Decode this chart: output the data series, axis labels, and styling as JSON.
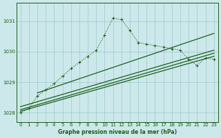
{
  "bg_color": "#cce8ea",
  "line_color": "#1a5c1a",
  "grid_color": "#9cc9cc",
  "title": "Graphe pression niveau de la mer (hPa)",
  "xlim": [
    -0.5,
    23.5
  ],
  "ylim": [
    1027.7,
    1031.6
  ],
  "yticks": [
    1028,
    1029,
    1030,
    1031
  ],
  "xticks": [
    0,
    1,
    2,
    3,
    4,
    5,
    6,
    7,
    8,
    9,
    10,
    11,
    12,
    13,
    14,
    15,
    16,
    17,
    18,
    19,
    20,
    21,
    22,
    23
  ],
  "main_curve": {
    "x": [
      0,
      1,
      2,
      3,
      4,
      5,
      6,
      7,
      8,
      9,
      10,
      11,
      12,
      13,
      14,
      15,
      16,
      17,
      18,
      19,
      20,
      21,
      22,
      23
    ],
    "y": [
      1028.0,
      1028.15,
      1028.55,
      1028.75,
      1028.95,
      1029.2,
      1029.45,
      1029.65,
      1029.85,
      1030.05,
      1030.55,
      1031.1,
      1031.05,
      1030.7,
      1030.3,
      1030.25,
      1030.2,
      1030.15,
      1030.1,
      1030.05,
      1029.75,
      1029.55,
      1029.8,
      1029.75
    ]
  },
  "line1": {
    "x": [
      0,
      23
    ],
    "y": [
      1028.05,
      1029.85
    ]
  },
  "line2": {
    "x": [
      0,
      23
    ],
    "y": [
      1028.1,
      1029.95
    ]
  },
  "line3": {
    "x": [
      0,
      23
    ],
    "y": [
      1028.2,
      1030.05
    ]
  },
  "line4": {
    "x": [
      2,
      23
    ],
    "y": [
      1028.65,
      1030.6
    ]
  }
}
